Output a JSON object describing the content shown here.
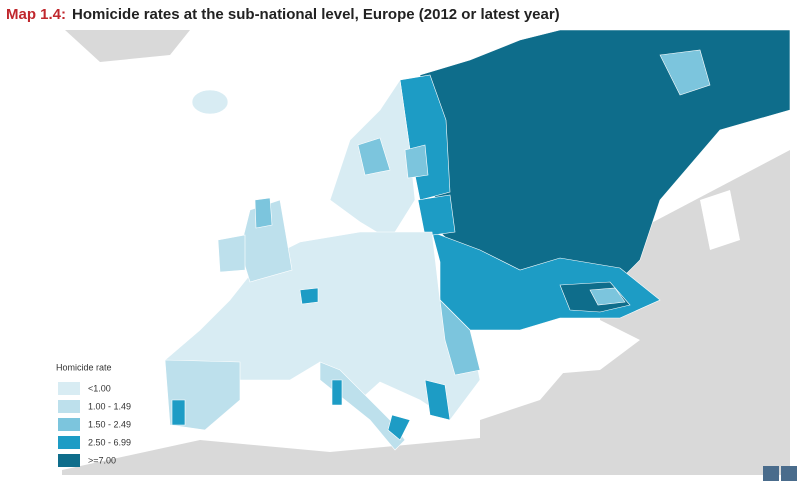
{
  "header": {
    "label": "Map 1.4:",
    "title": "Homicide rates at the sub-national level, Europe (2012 or latest year)"
  },
  "legend": {
    "title": "Homicide rate",
    "items": [
      {
        "label": "<1.00",
        "color": "#d8ecf3"
      },
      {
        "label": "1.00 - 1.49",
        "color": "#bde0ec"
      },
      {
        "label": "1.50 - 2.49",
        "color": "#7cc5dd"
      },
      {
        "label": "2.50 - 6.99",
        "color": "#1d9cc5"
      },
      {
        "label": ">=7.00",
        "color": "#0e6d8b"
      }
    ]
  }
}
